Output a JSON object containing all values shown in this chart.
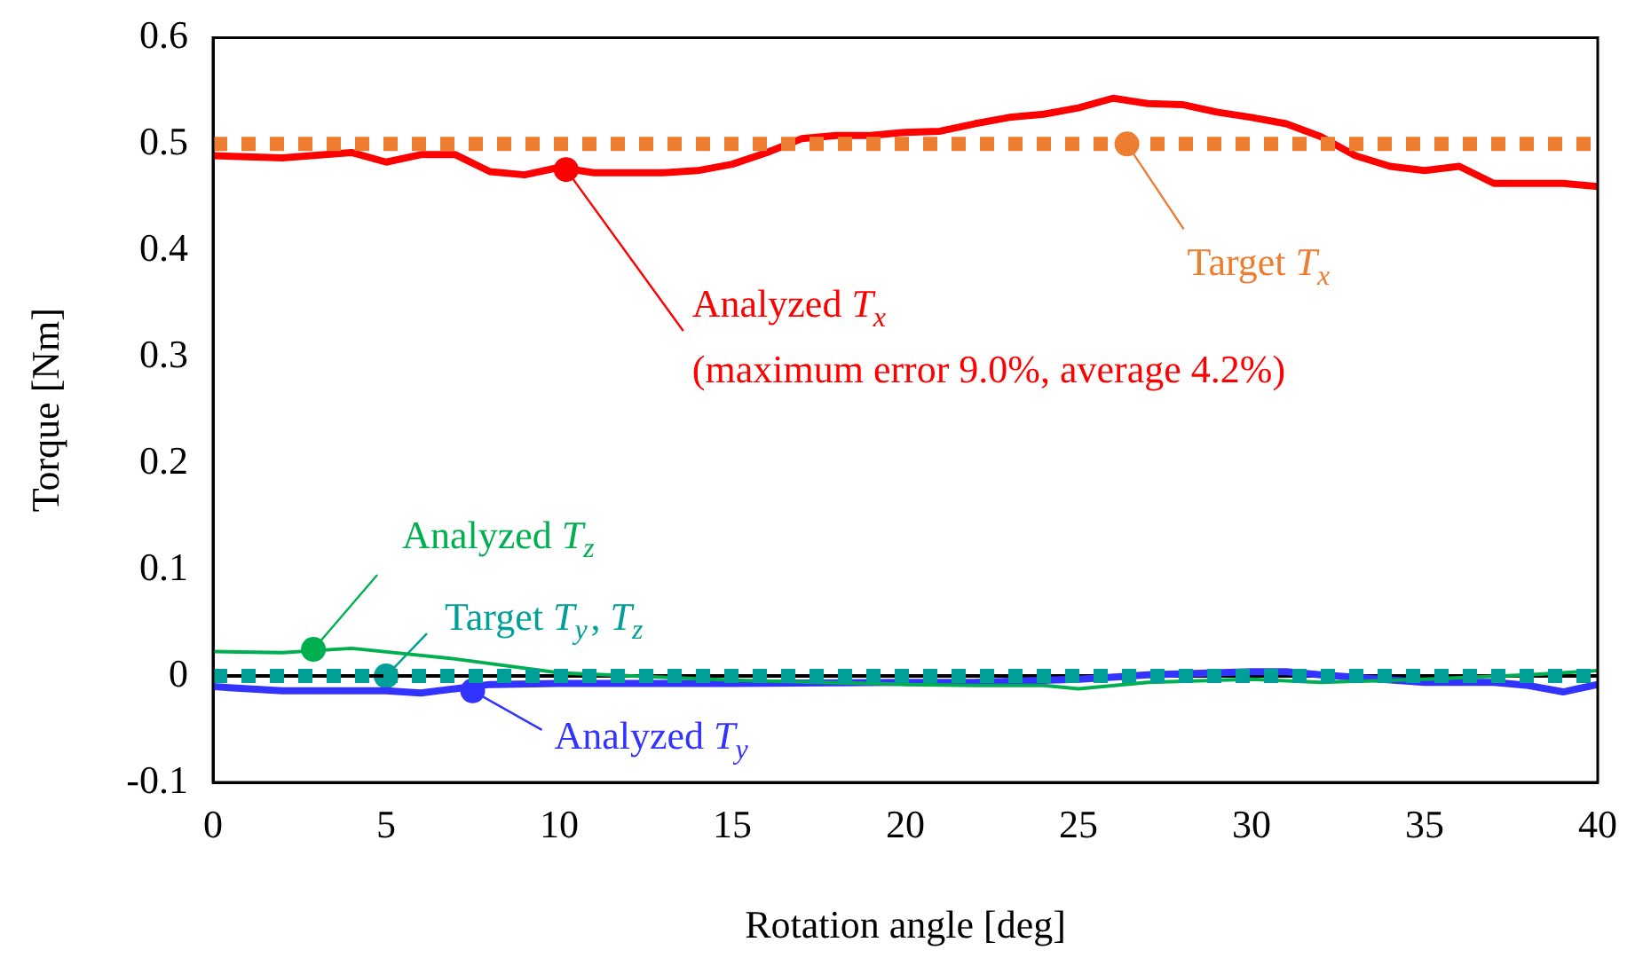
{
  "chart_data": {
    "type": "line",
    "xlabel": "Rotation angle [deg]",
    "ylabel": "Torque [Nm]",
    "xlim": [
      0,
      40
    ],
    "xticks": [
      0,
      5,
      10,
      15,
      20,
      25,
      30,
      35,
      40
    ],
    "ylim": [
      -0.1,
      0.6
    ],
    "yticks": [
      -0.1,
      0,
      0.1,
      0.2,
      0.3,
      0.4,
      0.5,
      0.6
    ],
    "grid": false,
    "legend": false,
    "marker": "none",
    "ref_lines": [
      {
        "axis": "y",
        "value": 0,
        "color": "#000000"
      }
    ],
    "series": [
      {
        "color": "#ed7d31",
        "line_style": "dotted",
        "x": [
          0,
          40
        ],
        "values": [
          0.5,
          0.5
        ]
      },
      {
        "color": "#ff0000",
        "line_style": "solid",
        "x": [
          0,
          2,
          4,
          5,
          6,
          7,
          8,
          9,
          10,
          11,
          13,
          14,
          15,
          16,
          17,
          18,
          19,
          20,
          21,
          22,
          23,
          24,
          25,
          26,
          27,
          28,
          29,
          30,
          31,
          32,
          33,
          34,
          35,
          36,
          37,
          39,
          40
        ],
        "values": [
          0.489,
          0.487,
          0.492,
          0.483,
          0.49,
          0.49,
          0.474,
          0.471,
          0.478,
          0.473,
          0.473,
          0.475,
          0.481,
          0.492,
          0.505,
          0.508,
          0.508,
          0.511,
          0.512,
          0.519,
          0.525,
          0.528,
          0.534,
          0.543,
          0.538,
          0.537,
          0.53,
          0.525,
          0.519,
          0.507,
          0.489,
          0.479,
          0.475,
          0.479,
          0.463,
          0.463,
          0.46
        ]
      },
      {
        "color": "#00b050",
        "line_style": "solid",
        "x": [
          0,
          2,
          4,
          7,
          10,
          15,
          20,
          22,
          24,
          25,
          27,
          30,
          32,
          35,
          38,
          40
        ],
        "values": [
          0.023,
          0.022,
          0.026,
          0.016,
          0.003,
          -0.004,
          -0.008,
          -0.009,
          -0.009,
          -0.012,
          -0.006,
          -0.003,
          -0.006,
          -0.003,
          0.001,
          0.005
        ]
      },
      {
        "color": "#3333ff",
        "line_style": "solid",
        "x": [
          0,
          2,
          5,
          6,
          7,
          8,
          10,
          15,
          20,
          22,
          25,
          27,
          30,
          31,
          32,
          35,
          37,
          38,
          39,
          40
        ],
        "values": [
          -0.01,
          -0.014,
          -0.014,
          -0.016,
          -0.012,
          -0.008,
          -0.007,
          -0.007,
          -0.006,
          -0.006,
          -0.003,
          0.001,
          0.004,
          0.004,
          0.001,
          -0.006,
          -0.006,
          -0.009,
          -0.015,
          -0.008
        ]
      },
      {
        "color": "#00a099",
        "line_style": "dotted",
        "x": [
          0,
          40
        ],
        "values": [
          0,
          0
        ]
      }
    ],
    "annotations": [
      {
        "text": "Analyzed T$_{z}$",
        "x": 2.9,
        "y": 0.025
      },
      {
        "text": "Target T$_{y}$, T$_{z}$",
        "x": 5,
        "y": 0
      },
      {
        "text": "Analyzed T$_{y}$",
        "x": 7.5,
        "y": -0.014
      },
      {
        "text": "Analyzed T$_{x}$\n(maximum error 9.0%, average 4.2%)",
        "x": 10.2,
        "y": 0.476
      },
      {
        "text": "Target T$_{x}$",
        "x": 26.4,
        "y": 0.5
      }
    ]
  }
}
